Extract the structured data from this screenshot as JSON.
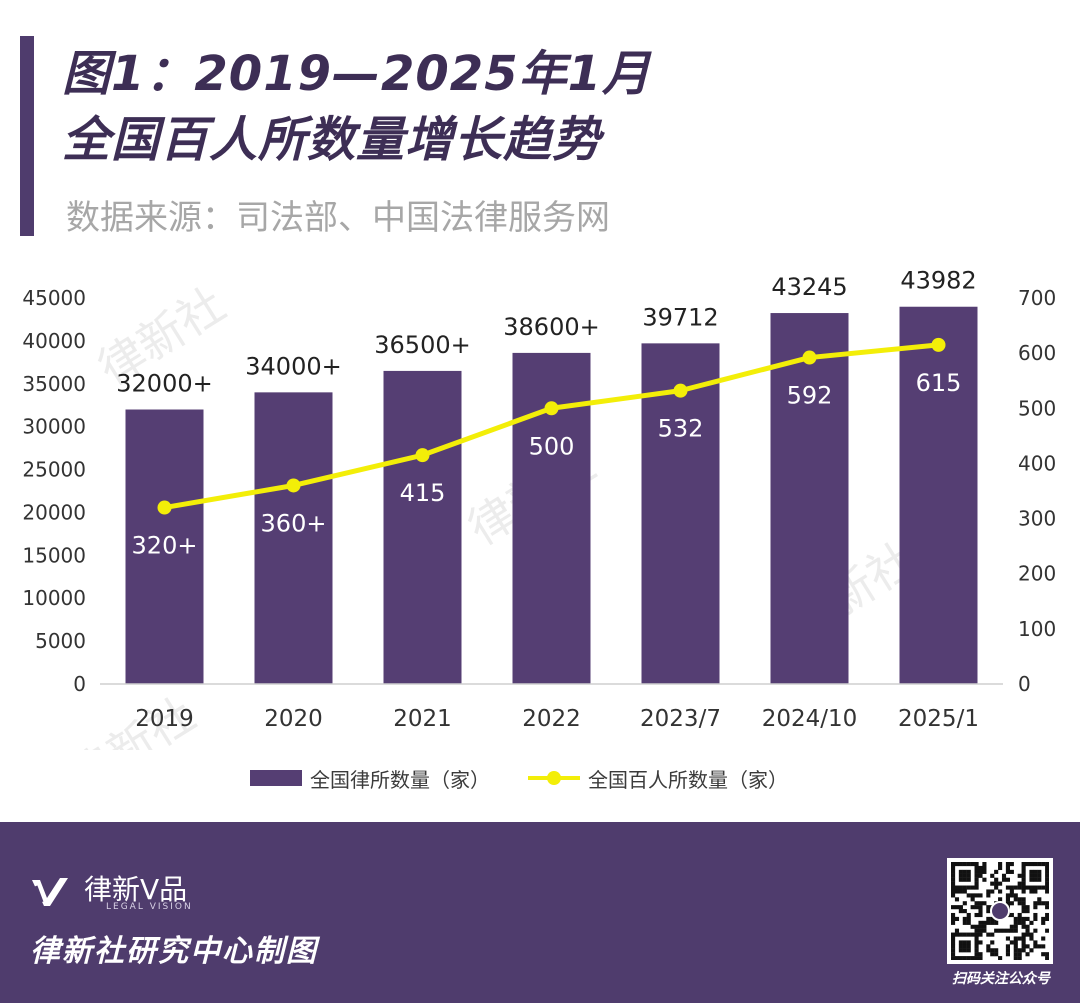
{
  "header": {
    "title_line1": "图1：2019—2025年1月",
    "title_line2": "全国百人所数量增长趋势",
    "source": "数据来源：司法部、中国法律服务网"
  },
  "watermark": "律新社",
  "chart_data": {
    "type": "bar",
    "categories": [
      "2019",
      "2020",
      "2021",
      "2022",
      "2023/7",
      "2024/10",
      "2025/1"
    ],
    "series": [
      {
        "name": "全国律所数量（家）",
        "type": "bar",
        "axis": "left",
        "values": [
          32000,
          34000,
          36500,
          38600,
          39712,
          43245,
          43982
        ],
        "labels": [
          "32000+",
          "34000+",
          "36500+",
          "38600+",
          "39712",
          "43245",
          "43982"
        ],
        "color": "#553e73"
      },
      {
        "name": "全国百人所数量（家）",
        "type": "line",
        "axis": "right",
        "values": [
          320,
          360,
          415,
          500,
          532,
          592,
          615
        ],
        "labels": [
          "320+",
          "360+",
          "415",
          "500",
          "532",
          "592",
          "615"
        ],
        "color": "#f3ee08"
      }
    ],
    "y_left": {
      "min": 0,
      "max": 45000,
      "ticks": [
        0,
        5000,
        10000,
        15000,
        20000,
        25000,
        30000,
        35000,
        40000,
        45000
      ]
    },
    "y_right": {
      "min": 0,
      "max": 700,
      "ticks": [
        0,
        100,
        200,
        300,
        400,
        500,
        600,
        700
      ]
    },
    "grid": false,
    "legend": "bottom"
  },
  "footer": {
    "brand_name": "律新V品",
    "brand_sub": "LEGAL VISION",
    "credit": "律新社研究中心制图",
    "qr_caption": "扫码关注公众号"
  }
}
